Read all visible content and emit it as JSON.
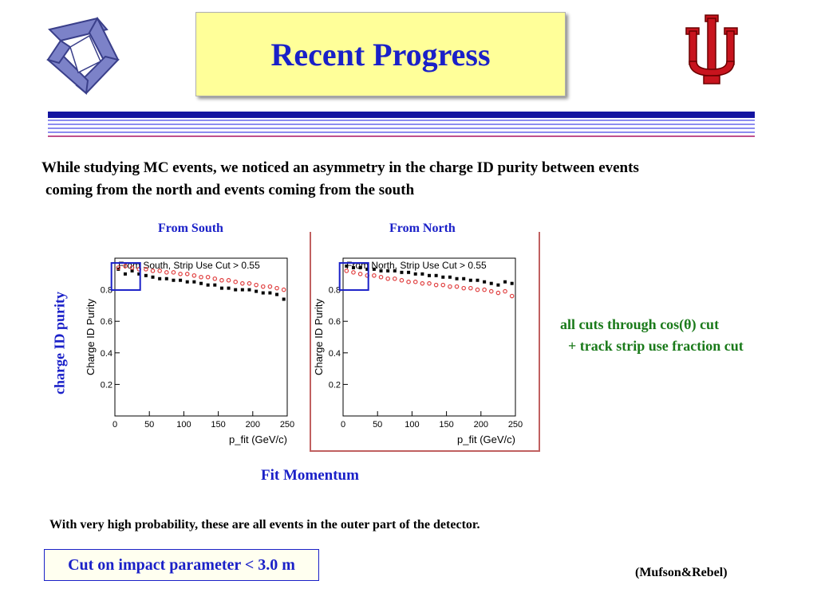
{
  "slide": {
    "title": "Recent Progress",
    "intro_line1": "While studying MC events, we noticed an asymmetry in the charge ID purity between events",
    "intro_line2": " coming from the north and events coming from the south",
    "side_label": "charge ID purity",
    "x_caption": "Fit Momentum",
    "cuts_line1": "all cuts through cos(θ) cut",
    "cuts_line2": "+ track strip use fraction cut",
    "note": "With very high probability, these are all events in the outer part of the detector.",
    "cut_box": "Cut on impact parameter < 3.0 m",
    "credit": "(Mufson&Rebel)",
    "colors": {
      "title_bg": "#ffff99",
      "title_text": "#1a20c8",
      "green_text": "#1a7a1a",
      "rule_dark": "#1414a0",
      "rule_light": "#8c8cf0",
      "rule_pink": "#c0508c"
    },
    "logos": [
      "triangle-logo",
      "iu-logo"
    ]
  },
  "chart_data": [
    {
      "type": "scatter",
      "label": "From South",
      "title": "From South, Strip Use Cut > 0.55",
      "xlabel": "p_fit (GeV/c)",
      "ylabel": "Charge ID Purity",
      "xlim": [
        0,
        250
      ],
      "ylim": [
        0,
        1
      ],
      "xticks": [
        "0",
        "50",
        "100",
        "150",
        "200",
        "250"
      ],
      "yticks": [
        "0.2",
        "0.4",
        "0.6",
        "0.8"
      ],
      "series": [
        {
          "color": "#000000",
          "x": [
            5,
            15,
            25,
            35,
            45,
            55,
            65,
            75,
            85,
            95,
            105,
            115,
            125,
            135,
            145,
            155,
            165,
            175,
            185,
            195,
            205,
            215,
            225,
            235,
            245
          ],
          "y": [
            0.93,
            0.9,
            0.92,
            0.9,
            0.89,
            0.88,
            0.87,
            0.87,
            0.86,
            0.86,
            0.85,
            0.85,
            0.84,
            0.83,
            0.83,
            0.81,
            0.81,
            0.8,
            0.8,
            0.8,
            0.79,
            0.78,
            0.78,
            0.77,
            0.74
          ]
        },
        {
          "color": "#e04040",
          "x": [
            5,
            15,
            25,
            35,
            45,
            55,
            65,
            75,
            85,
            95,
            105,
            115,
            125,
            135,
            145,
            155,
            165,
            175,
            185,
            195,
            205,
            215,
            225,
            235,
            245
          ],
          "y": [
            0.94,
            0.95,
            0.94,
            0.93,
            0.93,
            0.92,
            0.92,
            0.91,
            0.91,
            0.9,
            0.9,
            0.89,
            0.88,
            0.88,
            0.87,
            0.86,
            0.86,
            0.85,
            0.84,
            0.84,
            0.83,
            0.82,
            0.82,
            0.81,
            0.8
          ]
        }
      ]
    },
    {
      "type": "scatter",
      "label": "From North",
      "title": "From North, Strip Use Cut > 0.55",
      "xlabel": "p_fit (GeV/c)",
      "ylabel": "Charge ID Purity",
      "xlim": [
        0,
        250
      ],
      "ylim": [
        0,
        1
      ],
      "xticks": [
        "0",
        "50",
        "100",
        "150",
        "200",
        "250"
      ],
      "yticks": [
        "0.2",
        "0.4",
        "0.6",
        "0.8"
      ],
      "series": [
        {
          "color": "#000000",
          "x": [
            5,
            15,
            25,
            35,
            45,
            55,
            65,
            75,
            85,
            95,
            105,
            115,
            125,
            135,
            145,
            155,
            165,
            175,
            185,
            195,
            205,
            215,
            225,
            235,
            245
          ],
          "y": [
            0.95,
            0.94,
            0.94,
            0.93,
            0.93,
            0.92,
            0.92,
            0.92,
            0.91,
            0.91,
            0.9,
            0.9,
            0.89,
            0.89,
            0.88,
            0.88,
            0.87,
            0.87,
            0.86,
            0.86,
            0.85,
            0.84,
            0.83,
            0.85,
            0.84
          ]
        },
        {
          "color": "#e04040",
          "x": [
            5,
            15,
            25,
            35,
            45,
            55,
            65,
            75,
            85,
            95,
            105,
            115,
            125,
            135,
            145,
            155,
            165,
            175,
            185,
            195,
            205,
            215,
            225,
            235,
            245
          ],
          "y": [
            0.92,
            0.91,
            0.9,
            0.89,
            0.89,
            0.88,
            0.87,
            0.87,
            0.86,
            0.85,
            0.85,
            0.84,
            0.84,
            0.83,
            0.83,
            0.82,
            0.82,
            0.81,
            0.81,
            0.8,
            0.8,
            0.79,
            0.78,
            0.79,
            0.76
          ]
        }
      ]
    }
  ]
}
